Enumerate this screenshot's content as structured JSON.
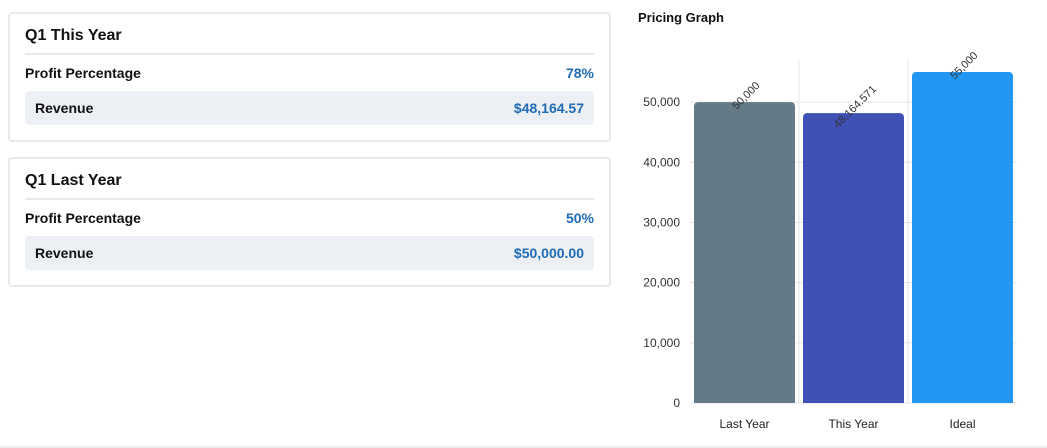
{
  "cards": [
    {
      "title": "Q1 This Year",
      "profit_label": "Profit Percentage",
      "profit_value": "78%",
      "revenue_label": "Revenue",
      "revenue_value": "$48,164.57"
    },
    {
      "title": "Q1 Last Year",
      "profit_label": "Profit Percentage",
      "profit_value": "50%",
      "revenue_label": "Revenue",
      "revenue_value": "$50,000.00"
    }
  ],
  "accent_color": "#1f6bb5",
  "graph": {
    "title": "Pricing Graph"
  },
  "chart_data": {
    "type": "bar",
    "categories": [
      "Last Year",
      "This Year",
      "Ideal"
    ],
    "values": [
      50000,
      48164.571,
      55000
    ],
    "data_labels": [
      "50,000",
      "48,164.571",
      "55,000"
    ],
    "colors": [
      "#647a87",
      "#3f51b5",
      "#2196f3"
    ],
    "yticks": [
      "0",
      "10,000",
      "20,000",
      "30,000",
      "40,000",
      "50,000"
    ],
    "ylim": [
      0,
      57000
    ],
    "grid": true,
    "legend": "none"
  }
}
